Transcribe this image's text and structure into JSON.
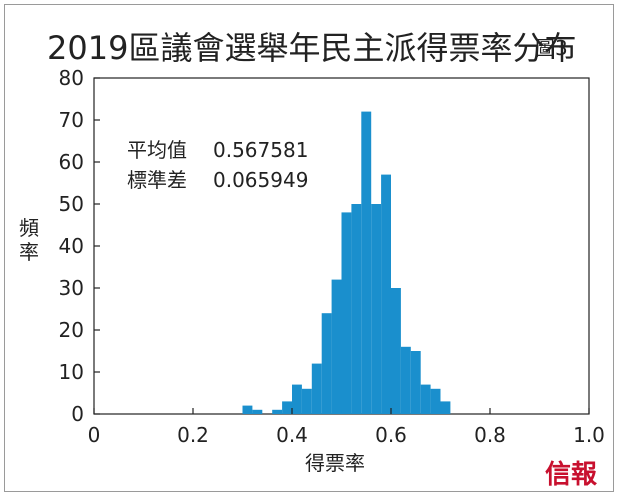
{
  "chart_data": {
    "type": "bar",
    "title": "2019區議會選舉年民主派得票率分布",
    "figure_label": "圖3",
    "xlabel": "得票率",
    "ylabel": "頻率",
    "xlim": [
      0,
      1.0
    ],
    "ylim": [
      0,
      80
    ],
    "xticks": [
      "0",
      "0.2",
      "0.4",
      "0.6",
      "0.8",
      "1.0"
    ],
    "yticks": [
      "0",
      "10",
      "20",
      "30",
      "40",
      "50",
      "60",
      "70",
      "80"
    ],
    "bin_width": 0.02,
    "bins": [
      {
        "start": 0.3,
        "value": 2
      },
      {
        "start": 0.32,
        "value": 1
      },
      {
        "start": 0.34,
        "value": 0
      },
      {
        "start": 0.36,
        "value": 1
      },
      {
        "start": 0.38,
        "value": 3
      },
      {
        "start": 0.4,
        "value": 7
      },
      {
        "start": 0.42,
        "value": 6
      },
      {
        "start": 0.44,
        "value": 12
      },
      {
        "start": 0.46,
        "value": 24
      },
      {
        "start": 0.48,
        "value": 32
      },
      {
        "start": 0.5,
        "value": 48
      },
      {
        "start": 0.52,
        "value": 50
      },
      {
        "start": 0.54,
        "value": 72
      },
      {
        "start": 0.56,
        "value": 50
      },
      {
        "start": 0.58,
        "value": 57
      },
      {
        "start": 0.6,
        "value": 30
      },
      {
        "start": 0.62,
        "value": 16
      },
      {
        "start": 0.64,
        "value": 15
      },
      {
        "start": 0.66,
        "value": 7
      },
      {
        "start": 0.68,
        "value": 6
      },
      {
        "start": 0.7,
        "value": 3
      }
    ],
    "stats": [
      {
        "label": "平均值",
        "value": "0.567581"
      },
      {
        "label": "標準差",
        "value": "0.065949"
      }
    ],
    "bar_color": "#1a8fcd",
    "grid": false
  },
  "logo_text": "信報",
  "logo_color": "#c8102e"
}
